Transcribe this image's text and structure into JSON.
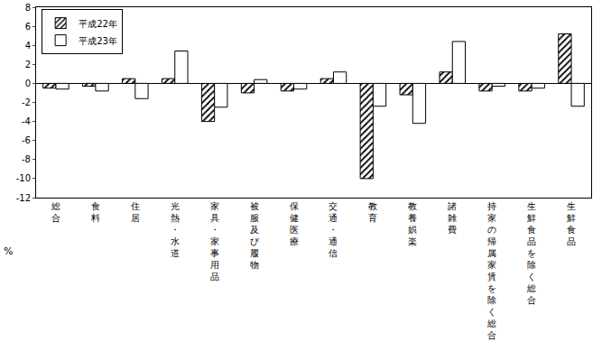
{
  "chart_data": {
    "type": "bar",
    "y_label": "%",
    "categories": [
      "総合",
      "食料",
      "住居",
      "光熱・水道",
      "家具・家事用品",
      "被服及び履物",
      "保健医療",
      "交通・通信",
      "教育",
      "教養娯楽",
      "諸雑費",
      "持家の帰属家賃を除く総合",
      "生鮮食品を除く総合",
      "生鮮食品"
    ],
    "series": [
      {
        "name": "平成22年",
        "color": "#000000",
        "marker": "hatch",
        "values": [
          -0.5,
          -0.3,
          0.5,
          0.5,
          -4.0,
          -1.0,
          -0.8,
          0.5,
          -10.0,
          -1.2,
          1.2,
          -0.8,
          -0.8,
          5.2
        ]
      },
      {
        "name": "平成23年",
        "color": "#ffffff",
        "marker": "solid",
        "values": [
          -0.6,
          -0.8,
          -1.6,
          3.4,
          -2.5,
          0.4,
          -0.6,
          1.2,
          -2.4,
          -4.2,
          4.4,
          -0.3,
          -0.5,
          -2.4
        ]
      }
    ],
    "ylim": [
      -12,
      8
    ],
    "yticks": [
      -12,
      -10,
      -8,
      -6,
      -4,
      -2,
      0,
      2,
      4,
      6,
      8
    ],
    "grid": false,
    "legend": "upper left"
  }
}
